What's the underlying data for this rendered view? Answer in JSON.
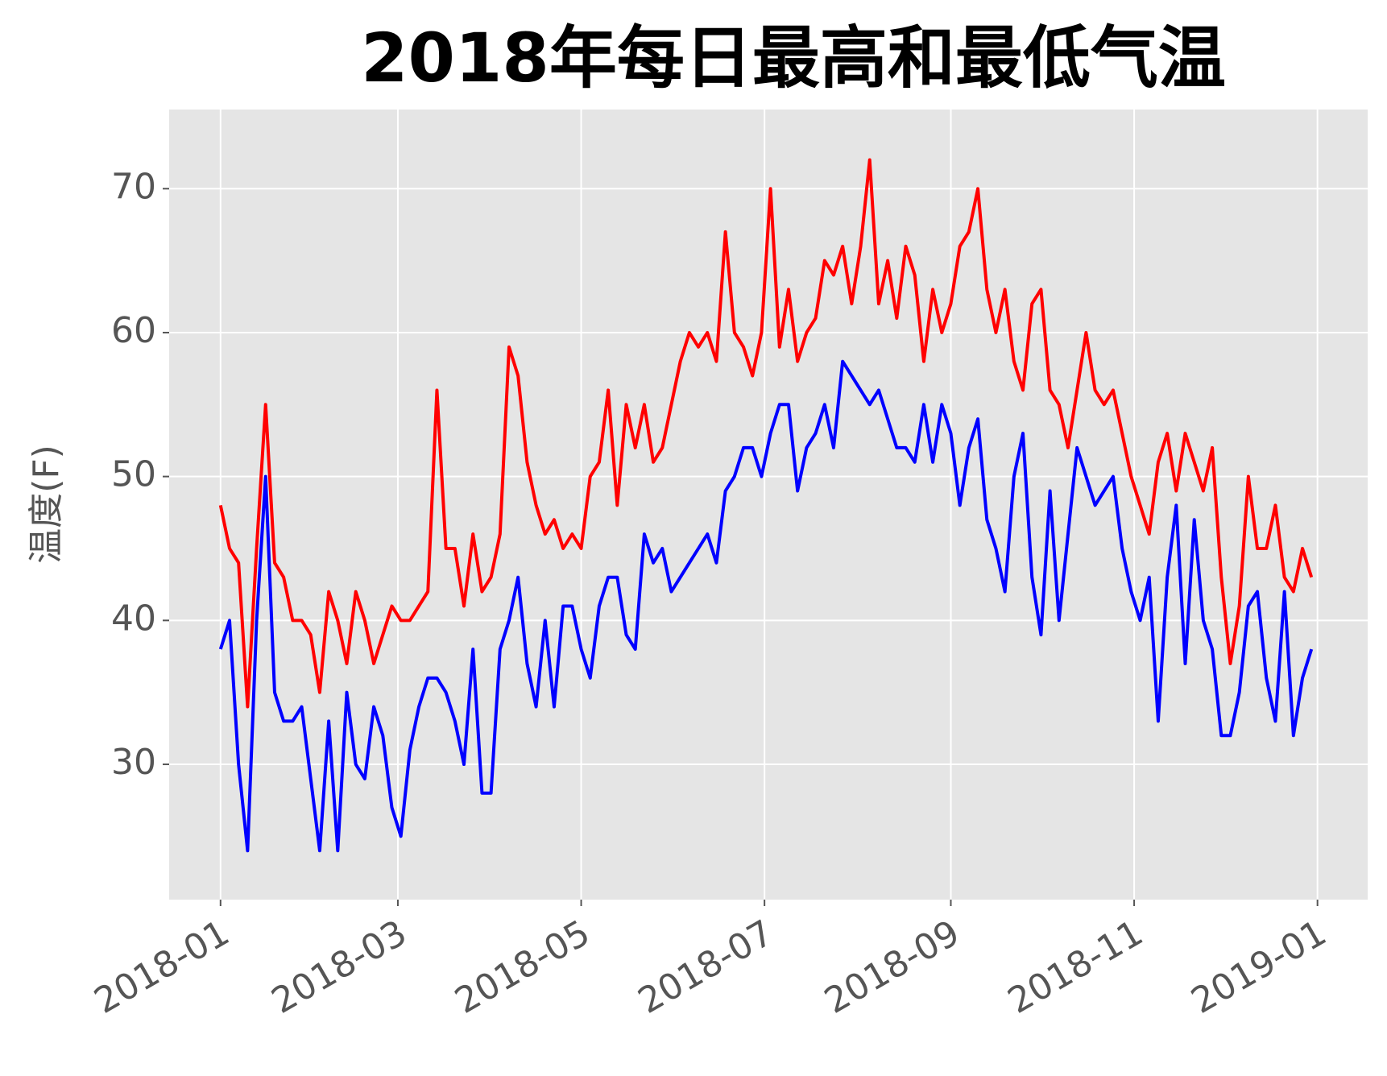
{
  "chart_data": {
    "type": "line",
    "title": "2018年每日最高和最低气温",
    "y_label": "温度(F)",
    "x": [
      0,
      3,
      6,
      9,
      12,
      15,
      18,
      21,
      24,
      27,
      30,
      33,
      36,
      39,
      42,
      45,
      48,
      51,
      54,
      57,
      60,
      63,
      66,
      69,
      72,
      75,
      78,
      81,
      84,
      87,
      90,
      93,
      96,
      99,
      102,
      105,
      108,
      111,
      114,
      117,
      120,
      123,
      126,
      129,
      132,
      135,
      138,
      141,
      144,
      147,
      150,
      153,
      156,
      159,
      162,
      165,
      168,
      171,
      174,
      177,
      180,
      183,
      186,
      189,
      192,
      195,
      198,
      201,
      204,
      207,
      210,
      213,
      216,
      219,
      222,
      225,
      228,
      231,
      234,
      237,
      240,
      243,
      246,
      249,
      252,
      255,
      258,
      261,
      264,
      267,
      270,
      273,
      276,
      279,
      282,
      285,
      288,
      291,
      294,
      297,
      300,
      303,
      306,
      309,
      312,
      315,
      318,
      321,
      324,
      327,
      330,
      333,
      336,
      339,
      342,
      345,
      348,
      351,
      354,
      357,
      360,
      363
    ],
    "series": [
      {
        "color": "#ff0000",
        "values": [
          48,
          45,
          44,
          34,
          45,
          55,
          44,
          43,
          40,
          40,
          39,
          35,
          42,
          40,
          37,
          42,
          40,
          37,
          39,
          41,
          40,
          40,
          41,
          42,
          56,
          45,
          45,
          41,
          46,
          42,
          43,
          46,
          59,
          57,
          51,
          48,
          46,
          47,
          45,
          46,
          45,
          50,
          51,
          56,
          48,
          55,
          52,
          55,
          51,
          52,
          55,
          58,
          60,
          59,
          60,
          58,
          67,
          60,
          59,
          57,
          60,
          70,
          59,
          63,
          58,
          60,
          61,
          65,
          64,
          66,
          62,
          66,
          72,
          62,
          65,
          61,
          66,
          64,
          58,
          63,
          60,
          62,
          66,
          67,
          70,
          63,
          60,
          63,
          58,
          56,
          62,
          63,
          56,
          55,
          52,
          56,
          60,
          56,
          55,
          56,
          53,
          50,
          48,
          46,
          51,
          53,
          49,
          53,
          51,
          49,
          52,
          43,
          37,
          41,
          50,
          45,
          45,
          48,
          43,
          42,
          45,
          43
        ]
      },
      {
        "color": "#0000ff",
        "values": [
          38,
          40,
          30,
          24,
          40,
          50,
          35,
          33,
          33,
          34,
          29,
          24,
          33,
          24,
          35,
          30,
          29,
          34,
          32,
          27,
          25,
          31,
          34,
          36,
          36,
          35,
          33,
          30,
          38,
          28,
          28,
          38,
          40,
          43,
          37,
          34,
          40,
          34,
          41,
          41,
          38,
          36,
          41,
          43,
          43,
          39,
          38,
          46,
          44,
          45,
          42,
          43,
          44,
          45,
          46,
          44,
          49,
          50,
          52,
          52,
          50,
          53,
          55,
          55,
          49,
          52,
          53,
          55,
          52,
          58,
          57,
          56,
          55,
          56,
          54,
          52,
          52,
          51,
          55,
          51,
          55,
          53,
          48,
          52,
          54,
          47,
          45,
          42,
          50,
          53,
          43,
          39,
          49,
          40,
          46,
          52,
          50,
          48,
          49,
          50,
          45,
          42,
          40,
          43,
          33,
          43,
          48,
          37,
          47,
          40,
          38,
          32,
          32,
          35,
          41,
          42,
          36,
          33,
          42,
          32,
          36,
          38
        ]
      }
    ],
    "xlim": [
      -17.1,
      381.7
    ],
    "xticks": [
      {
        "value": 0,
        "label": "2018-01"
      },
      {
        "value": 59,
        "label": "2018-03"
      },
      {
        "value": 120,
        "label": "2018-05"
      },
      {
        "value": 181,
        "label": "2018-07"
      },
      {
        "value": 243,
        "label": "2018-09"
      },
      {
        "value": 304,
        "label": "2018-11"
      },
      {
        "value": 365,
        "label": "2019-01"
      }
    ],
    "ylim": [
      20.6,
      75.5
    ],
    "yticks": [
      30,
      40,
      50,
      60,
      70
    ],
    "grid": true
  }
}
